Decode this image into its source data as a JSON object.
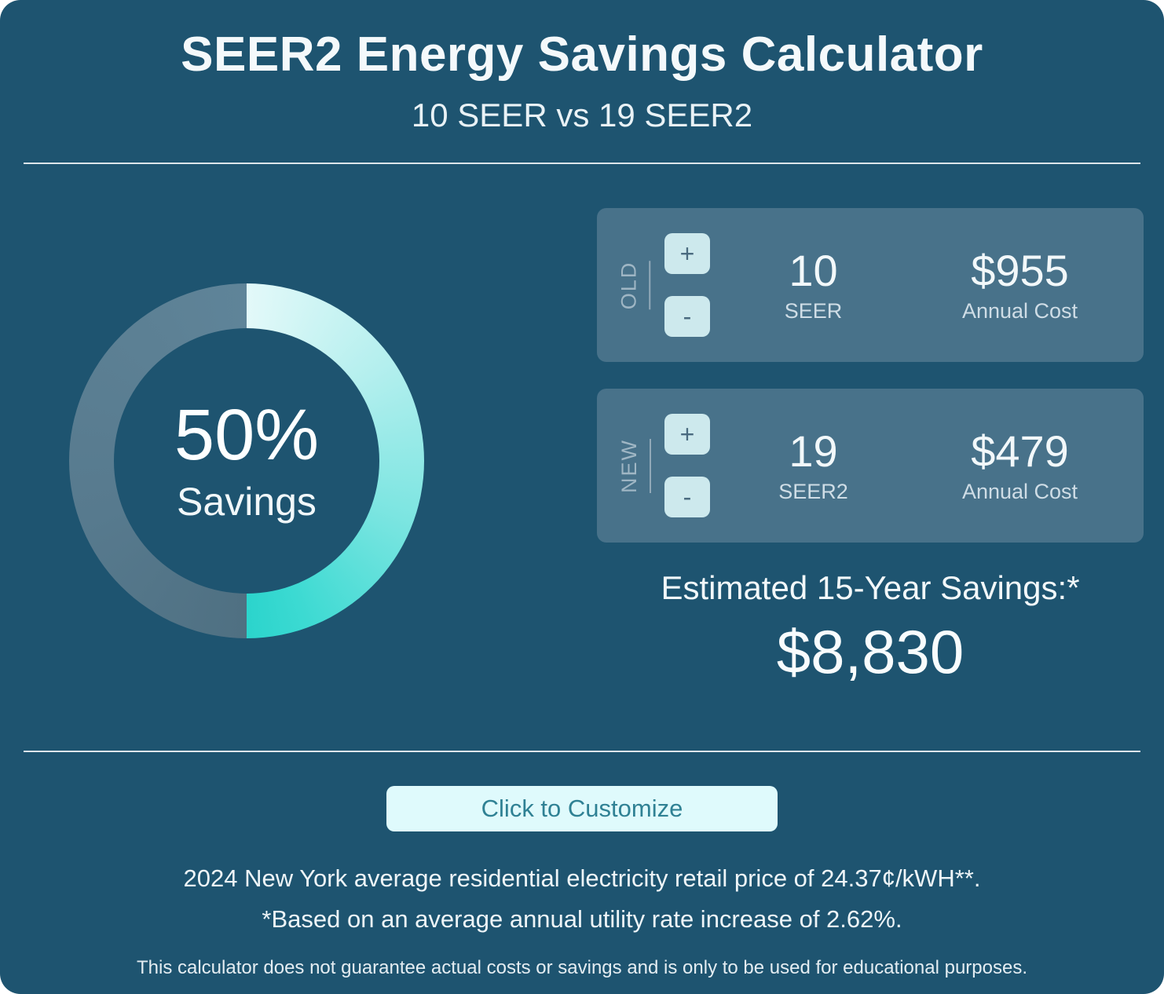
{
  "theme": {
    "background": "#1e5470",
    "panel": "#48728a",
    "stepper_button": "#cde9ed",
    "accent_teal": "#2bd4cc",
    "donut_remainder": "#577a8e",
    "customize_button_bg": "#dffafc",
    "customize_button_text": "#2f8194",
    "text": "#eef5f8"
  },
  "header": {
    "title": "SEER2 Energy Savings Calculator",
    "subtitle": "10 SEER vs 19 SEER2"
  },
  "chart_data": {
    "type": "pie",
    "title": "Energy savings donut",
    "slices": [
      {
        "label": "Savings",
        "value": 50,
        "color": "#2bd4cc"
      },
      {
        "label": "Remaining",
        "value": 50,
        "color": "#577a8e"
      }
    ],
    "center_value": "50%",
    "center_label": "Savings",
    "legend_position": "none"
  },
  "controls": {
    "plus_label": "+",
    "minus_label": "-"
  },
  "old_unit": {
    "tag": "OLD",
    "seer_value": "10",
    "seer_label": "SEER",
    "cost_value": "$955",
    "cost_label": "Annual Cost"
  },
  "new_unit": {
    "tag": "NEW",
    "seer_value": "19",
    "seer_label": "SEER2",
    "cost_value": "$479",
    "cost_label": "Annual Cost"
  },
  "savings": {
    "label": "Estimated 15-Year Savings:*",
    "value": "$8,830"
  },
  "customize": {
    "label": "Click to Customize"
  },
  "footnotes": {
    "price_note": "2024 New York average residential electricity retail price of 24.37¢/kWH**.",
    "rate_note": "*Based on an average annual utility rate increase of 2.62%.",
    "disclaimer": "This calculator does not guarantee actual costs or savings and is only to be used for educational purposes."
  }
}
